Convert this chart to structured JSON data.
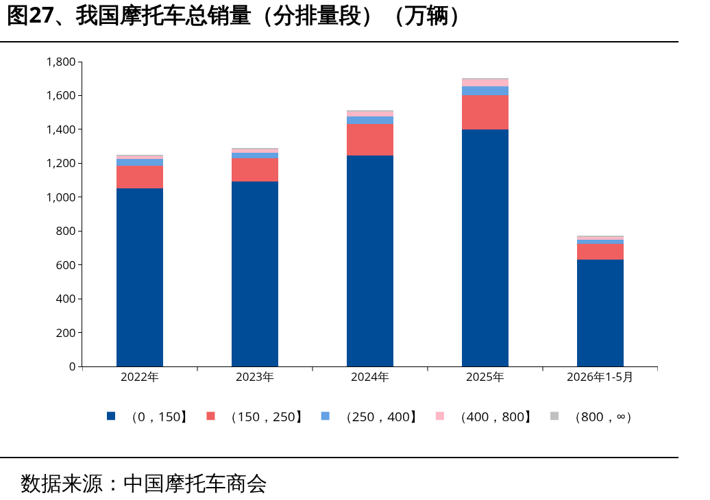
{
  "chart_data": {
    "type": "bar",
    "title": "图27、我国摩托车总销量（分排量段）（万辆）",
    "categories": [
      "2022年",
      "2023年",
      "2024年",
      "2025年",
      "2026年1-5月"
    ],
    "stacked": true,
    "series": [
      {
        "name": "（0，150】",
        "color": "#004c97",
        "values": [
          1050,
          1092,
          1246,
          1400,
          633
        ]
      },
      {
        "name": "（150，250】",
        "color": "#f06060",
        "values": [
          137,
          139,
          186,
          202,
          93
        ]
      },
      {
        "name": "（250，400】",
        "color": "#63a1e3",
        "values": [
          37,
          31,
          45,
          54,
          22
        ]
      },
      {
        "name": "（400，800】",
        "color": "#ffb8c6",
        "values": [
          18,
          22,
          30,
          39,
          18
        ]
      },
      {
        "name": "（800，∞）",
        "color": "#c0c0c0",
        "values": [
          4,
          6,
          7,
          6,
          5
        ]
      }
    ],
    "ylim": [
      0,
      1800
    ],
    "yticks": [
      {
        "value": 0,
        "label": "0"
      },
      {
        "value": 200,
        "label": "200"
      },
      {
        "value": 400,
        "label": "400"
      },
      {
        "value": 600,
        "label": "600"
      },
      {
        "value": 800,
        "label": "800"
      },
      {
        "value": 1000,
        "label": "1,000"
      },
      {
        "value": 1200,
        "label": "1,200"
      },
      {
        "value": 1400,
        "label": "1,400"
      },
      {
        "value": 1600,
        "label": "1,600"
      },
      {
        "value": 1800,
        "label": "1,800"
      }
    ],
    "grid": false,
    "legend": "bottom",
    "annotations": [
      "数据来源：中国摩托车商会"
    ]
  }
}
